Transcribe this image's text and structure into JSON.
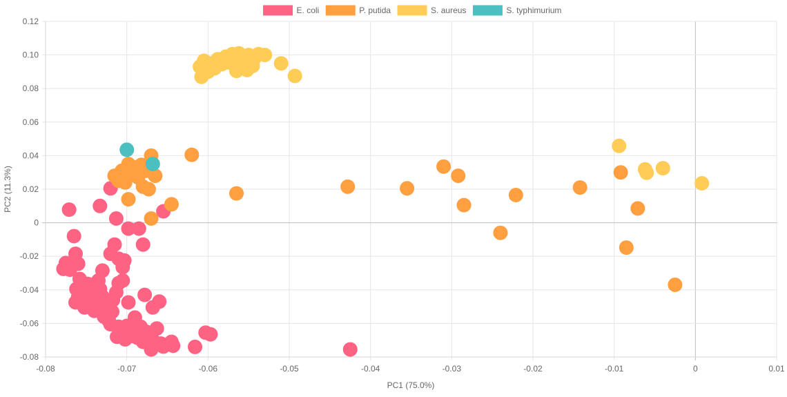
{
  "chart_data": {
    "type": "scatter",
    "title": "",
    "xlabel": "PC1 (75.0%)",
    "ylabel": "PC2 (11.3%)",
    "xlim": [
      -0.08,
      0.01
    ],
    "ylim": [
      -0.08,
      0.12
    ],
    "x_ticks": [
      "-0.08",
      "-0.07",
      "-0.06",
      "-0.05",
      "-0.04",
      "-0.03",
      "-0.02",
      "-0.01",
      "0",
      "0.01"
    ],
    "y_ticks": [
      "0.12",
      "0.10",
      "0.08",
      "0.06",
      "0.04",
      "0.02",
      "0",
      "-0.02",
      "-0.04",
      "-0.06",
      "-0.08"
    ],
    "grid": true,
    "legend_position": "top",
    "series": [
      {
        "name": "E. coli",
        "color": "#ff6384",
        "points": [
          [
            -0.0771,
            0.0078
          ],
          [
            -0.0765,
            -0.008
          ],
          [
            -0.0763,
            -0.0185
          ],
          [
            -0.076,
            -0.0245
          ],
          [
            -0.0775,
            -0.024
          ],
          [
            -0.0778,
            -0.0275
          ],
          [
            -0.0758,
            -0.0335
          ],
          [
            -0.0762,
            -0.0395
          ],
          [
            -0.076,
            -0.0445
          ],
          [
            -0.0763,
            -0.0475
          ],
          [
            -0.0752,
            -0.0505
          ],
          [
            -0.0748,
            -0.0365
          ],
          [
            -0.0745,
            -0.042
          ],
          [
            -0.0742,
            -0.0455
          ],
          [
            -0.074,
            -0.0525
          ],
          [
            -0.0738,
            -0.048
          ],
          [
            -0.0735,
            -0.0345
          ],
          [
            -0.0733,
            -0.0395
          ],
          [
            -0.073,
            -0.044
          ],
          [
            -0.0728,
            -0.05
          ],
          [
            -0.0725,
            -0.0545
          ],
          [
            -0.0722,
            -0.0585
          ],
          [
            -0.072,
            -0.0605
          ],
          [
            -0.0717,
            -0.046
          ],
          [
            -0.0713,
            -0.0415
          ],
          [
            -0.071,
            -0.062
          ],
          [
            -0.0705,
            -0.066
          ],
          [
            -0.07,
            -0.0615
          ],
          [
            -0.0695,
            -0.064
          ],
          [
            -0.069,
            -0.0565
          ],
          [
            -0.0687,
            -0.0685
          ],
          [
            -0.0683,
            -0.062
          ],
          [
            -0.068,
            -0.071
          ],
          [
            -0.0676,
            -0.065
          ],
          [
            -0.067,
            -0.0755
          ],
          [
            -0.0667,
            -0.0705
          ],
          [
            -0.0663,
            -0.063
          ],
          [
            -0.0658,
            -0.072
          ],
          [
            -0.0655,
            -0.0738
          ],
          [
            -0.0645,
            -0.071
          ],
          [
            -0.0643,
            -0.0733
          ],
          [
            -0.0616,
            -0.074
          ],
          [
            -0.0603,
            -0.0655
          ],
          [
            -0.0597,
            -0.0665
          ],
          [
            -0.073,
            -0.0285
          ],
          [
            -0.072,
            -0.0185
          ],
          [
            -0.0715,
            -0.013
          ],
          [
            -0.071,
            -0.0215
          ],
          [
            -0.0705,
            -0.0265
          ],
          [
            -0.0703,
            -0.0225
          ],
          [
            -0.0705,
            -0.0345
          ],
          [
            -0.071,
            -0.036
          ],
          [
            -0.0698,
            -0.0475
          ],
          [
            -0.0678,
            -0.043
          ],
          [
            -0.0668,
            -0.0505
          ],
          [
            -0.066,
            -0.047
          ],
          [
            -0.0733,
            0.01
          ],
          [
            -0.072,
            0.0205
          ],
          [
            -0.0713,
            0.0025
          ],
          [
            -0.0698,
            -0.0035
          ],
          [
            -0.0685,
            -0.0035
          ],
          [
            -0.068,
            -0.013
          ],
          [
            -0.0655,
            0.0068
          ],
          [
            -0.0425,
            -0.0755
          ],
          [
            -0.077,
            -0.028
          ],
          [
            -0.0755,
            -0.042
          ],
          [
            -0.075,
            -0.047
          ],
          [
            -0.0745,
            -0.05
          ],
          [
            -0.074,
            -0.038
          ],
          [
            -0.0735,
            -0.046
          ],
          [
            -0.0728,
            -0.056
          ],
          [
            -0.0718,
            -0.053
          ],
          [
            -0.0712,
            -0.068
          ],
          [
            -0.0702,
            -0.0695
          ],
          [
            -0.0693,
            -0.0675
          ],
          [
            -0.0672,
            -0.069
          ]
        ]
      },
      {
        "name": "P. putida",
        "color": "#ff9f40",
        "points": [
          [
            -0.0715,
            0.028
          ],
          [
            -0.071,
            0.025
          ],
          [
            -0.0706,
            0.031
          ],
          [
            -0.0702,
            0.024
          ],
          [
            -0.0698,
            0.035
          ],
          [
            -0.0695,
            0.029
          ],
          [
            -0.069,
            0.033
          ],
          [
            -0.0686,
            0.027
          ],
          [
            -0.0682,
            0.0345
          ],
          [
            -0.068,
            0.0215
          ],
          [
            -0.0676,
            0.031
          ],
          [
            -0.0673,
            0.02
          ],
          [
            -0.067,
            0.04
          ],
          [
            -0.0665,
            0.028
          ],
          [
            -0.0698,
            0.014
          ],
          [
            -0.067,
            0.0025
          ],
          [
            -0.0645,
            0.011
          ],
          [
            -0.062,
            0.0405
          ],
          [
            -0.0565,
            0.0175
          ],
          [
            -0.0428,
            0.0215
          ],
          [
            -0.0355,
            0.0205
          ],
          [
            -0.031,
            0.0335
          ],
          [
            -0.0292,
            0.028
          ],
          [
            -0.0285,
            0.0105
          ],
          [
            -0.024,
            -0.006
          ],
          [
            -0.0221,
            0.0165
          ],
          [
            -0.0142,
            0.021
          ],
          [
            -0.0092,
            0.03
          ],
          [
            -0.0085,
            -0.0148
          ],
          [
            -0.0071,
            0.0085
          ],
          [
            -0.0025,
            -0.037
          ]
        ]
      },
      {
        "name": "S. aureus",
        "color": "#ffcd56",
        "points": [
          [
            -0.061,
            0.093
          ],
          [
            -0.0605,
            0.0965
          ],
          [
            -0.06,
            0.09
          ],
          [
            -0.0598,
            0.095
          ],
          [
            -0.0592,
            0.092
          ],
          [
            -0.0588,
            0.0975
          ],
          [
            -0.0583,
            0.0945
          ],
          [
            -0.0578,
            0.099
          ],
          [
            -0.0574,
            0.0955
          ],
          [
            -0.057,
            0.1005
          ],
          [
            -0.0566,
            0.097
          ],
          [
            -0.0562,
            0.101
          ],
          [
            -0.0558,
            0.0975
          ],
          [
            -0.0555,
            0.0935
          ],
          [
            -0.055,
            0.1
          ],
          [
            -0.0546,
            0.096
          ],
          [
            -0.0543,
            0.098
          ],
          [
            -0.0538,
            0.1005
          ],
          [
            -0.053,
            0.1
          ],
          [
            -0.0608,
            0.087
          ],
          [
            -0.0565,
            0.0905
          ],
          [
            -0.0552,
            0.091
          ],
          [
            -0.0545,
            0.0935
          ],
          [
            -0.051,
            0.095
          ],
          [
            -0.0493,
            0.0875
          ],
          [
            -0.0094,
            0.0458
          ],
          [
            -0.0062,
            0.0318
          ],
          [
            -0.006,
            0.0298
          ],
          [
            -0.004,
            0.0325
          ],
          [
            0.0008,
            0.0235
          ]
        ]
      },
      {
        "name": "S. typhimurium",
        "color": "#4bc0c0",
        "points": [
          [
            -0.07,
            0.0435
          ],
          [
            -0.0668,
            0.035
          ]
        ]
      }
    ]
  }
}
